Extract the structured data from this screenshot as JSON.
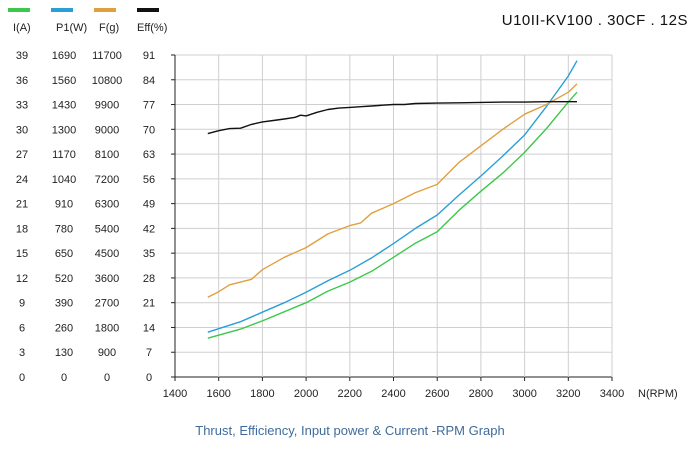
{
  "chart_data": {
    "type": "line",
    "title": "U10II-KV100 . 30CF . 12S",
    "caption": "Thrust, Efficiency, Input power & Current -RPM Graph",
    "xlabel": "N(RPM)",
    "xlim": [
      1400,
      3400
    ],
    "xticks": [
      1400,
      1600,
      1800,
      2000,
      2200,
      2400,
      2600,
      2800,
      3000,
      3200,
      3400
    ],
    "grid_steps": 13,
    "axes": [
      {
        "key": "current",
        "label": "I(A)",
        "color": "#3cc84a",
        "ticks": [
          0,
          3,
          6,
          9,
          12,
          15,
          18,
          21,
          24,
          27,
          30,
          33,
          36,
          39
        ]
      },
      {
        "key": "power",
        "label": "P1(W)",
        "color": "#2a9fd6",
        "ticks": [
          0,
          130,
          260,
          390,
          520,
          650,
          780,
          910,
          1040,
          1170,
          1300,
          1430,
          1560,
          1690
        ]
      },
      {
        "key": "thrust",
        "label": "F(g)",
        "color": "#e0a040",
        "ticks": [
          0,
          900,
          1800,
          2700,
          3600,
          4500,
          5400,
          6300,
          7200,
          8100,
          9000,
          9900,
          10800,
          11700
        ]
      },
      {
        "key": "efficiency",
        "label": "Eff(%)",
        "color": "#111111",
        "ticks": [
          0,
          7,
          14,
          21,
          28,
          35,
          42,
          49,
          56,
          63,
          70,
          77,
          84,
          91
        ]
      }
    ],
    "series": [
      {
        "name": "I(A)",
        "axis": "current",
        "color": "#3cc84a",
        "x": [
          1550,
          1700,
          1800,
          2000,
          2100,
          2200,
          2300,
          2400,
          2500,
          2600,
          2700,
          2800,
          2900,
          3000,
          3100,
          3200,
          3240
        ],
        "y": [
          4.7,
          5.8,
          6.8,
          9.0,
          10.4,
          11.5,
          12.8,
          14.5,
          16.2,
          17.6,
          20.2,
          22.5,
          24.7,
          27.2,
          30.1,
          33.3,
          34.5
        ]
      },
      {
        "name": "P1(W)",
        "axis": "power",
        "color": "#2a9fd6",
        "x": [
          1550,
          1700,
          1800,
          1900,
          2000,
          2100,
          2200,
          2300,
          2400,
          2500,
          2600,
          2700,
          2800,
          2900,
          3000,
          3100,
          3200,
          3240
        ],
        "y": [
          235,
          290,
          340,
          390,
          445,
          505,
          560,
          625,
          700,
          780,
          850,
          955,
          1055,
          1160,
          1270,
          1420,
          1580,
          1660
        ]
      },
      {
        "name": "F(g)",
        "axis": "thrust",
        "color": "#e0a040",
        "x": [
          1550,
          1600,
          1650,
          1700,
          1750,
          1800,
          1900,
          2000,
          2100,
          2200,
          2250,
          2300,
          2400,
          2500,
          2600,
          2700,
          2800,
          2900,
          3000,
          3100,
          3200,
          3240
        ],
        "y": [
          2900,
          3100,
          3350,
          3450,
          3550,
          3900,
          4350,
          4700,
          5200,
          5500,
          5600,
          5950,
          6300,
          6700,
          7000,
          7800,
          8400,
          9000,
          9550,
          9900,
          10350,
          10650
        ]
      },
      {
        "name": "Eff(%)",
        "axis": "efficiency",
        "color": "#111111",
        "x": [
          1550,
          1600,
          1650,
          1700,
          1750,
          1800,
          1850,
          1900,
          1950,
          1975,
          2000,
          2050,
          2100,
          2150,
          2200,
          2250,
          2300,
          2350,
          2400,
          2450,
          2500,
          2600,
          2700,
          2800,
          2900,
          3000,
          3100,
          3200,
          3240
        ],
        "y": [
          68.8,
          69.6,
          70.2,
          70.3,
          71.4,
          72.1,
          72.5,
          72.9,
          73.4,
          74.0,
          73.8,
          74.8,
          75.6,
          76.0,
          76.2,
          76.4,
          76.6,
          76.8,
          77.0,
          77.0,
          77.3,
          77.4,
          77.5,
          77.6,
          77.7,
          77.7,
          77.8,
          77.8,
          77.8
        ]
      }
    ]
  }
}
